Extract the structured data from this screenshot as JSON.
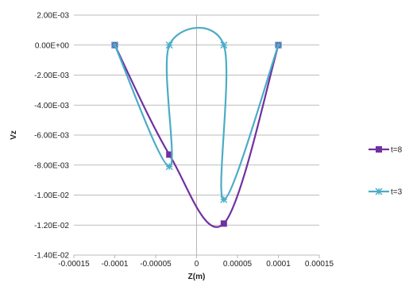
{
  "chart_data": {
    "type": "scatter",
    "title": "",
    "xlabel": "Z(m)",
    "ylabel": "Vz",
    "xlim": [
      -0.00015,
      0.00015
    ],
    "ylim": [
      -0.014,
      0.002
    ],
    "x_ticks": [
      "-0.00015",
      "-0.0001",
      "-0.00005",
      "0",
      "0.00005",
      "0.0001",
      "0.00015"
    ],
    "y_ticks": [
      "2.00E-03",
      "0.00E+00",
      "-2.00E-03",
      "-4.00E-03",
      "-6.00E-03",
      "-8.00E-03",
      "-1.00E-02",
      "-1.20E-02",
      "-1.40E-02"
    ],
    "grid": "horizontal",
    "legend_position": "right",
    "series": [
      {
        "name": "t=8",
        "color": "#7030a0",
        "marker": "square",
        "x": [
          -0.0001,
          -3.33e-05,
          3.33e-05,
          0.0001
        ],
        "y": [
          0.0,
          -0.0073,
          -0.0119,
          0.0
        ]
      },
      {
        "name": "t=3",
        "color": "#4bacc6",
        "marker": "star",
        "x": [
          -0.0001,
          -3.33e-05,
          -3.33e-05,
          3.33e-05,
          3.33e-05,
          0.0001
        ],
        "y": [
          0.0,
          -0.0081,
          0.0,
          0.0,
          -0.0103,
          0.0
        ]
      }
    ]
  }
}
